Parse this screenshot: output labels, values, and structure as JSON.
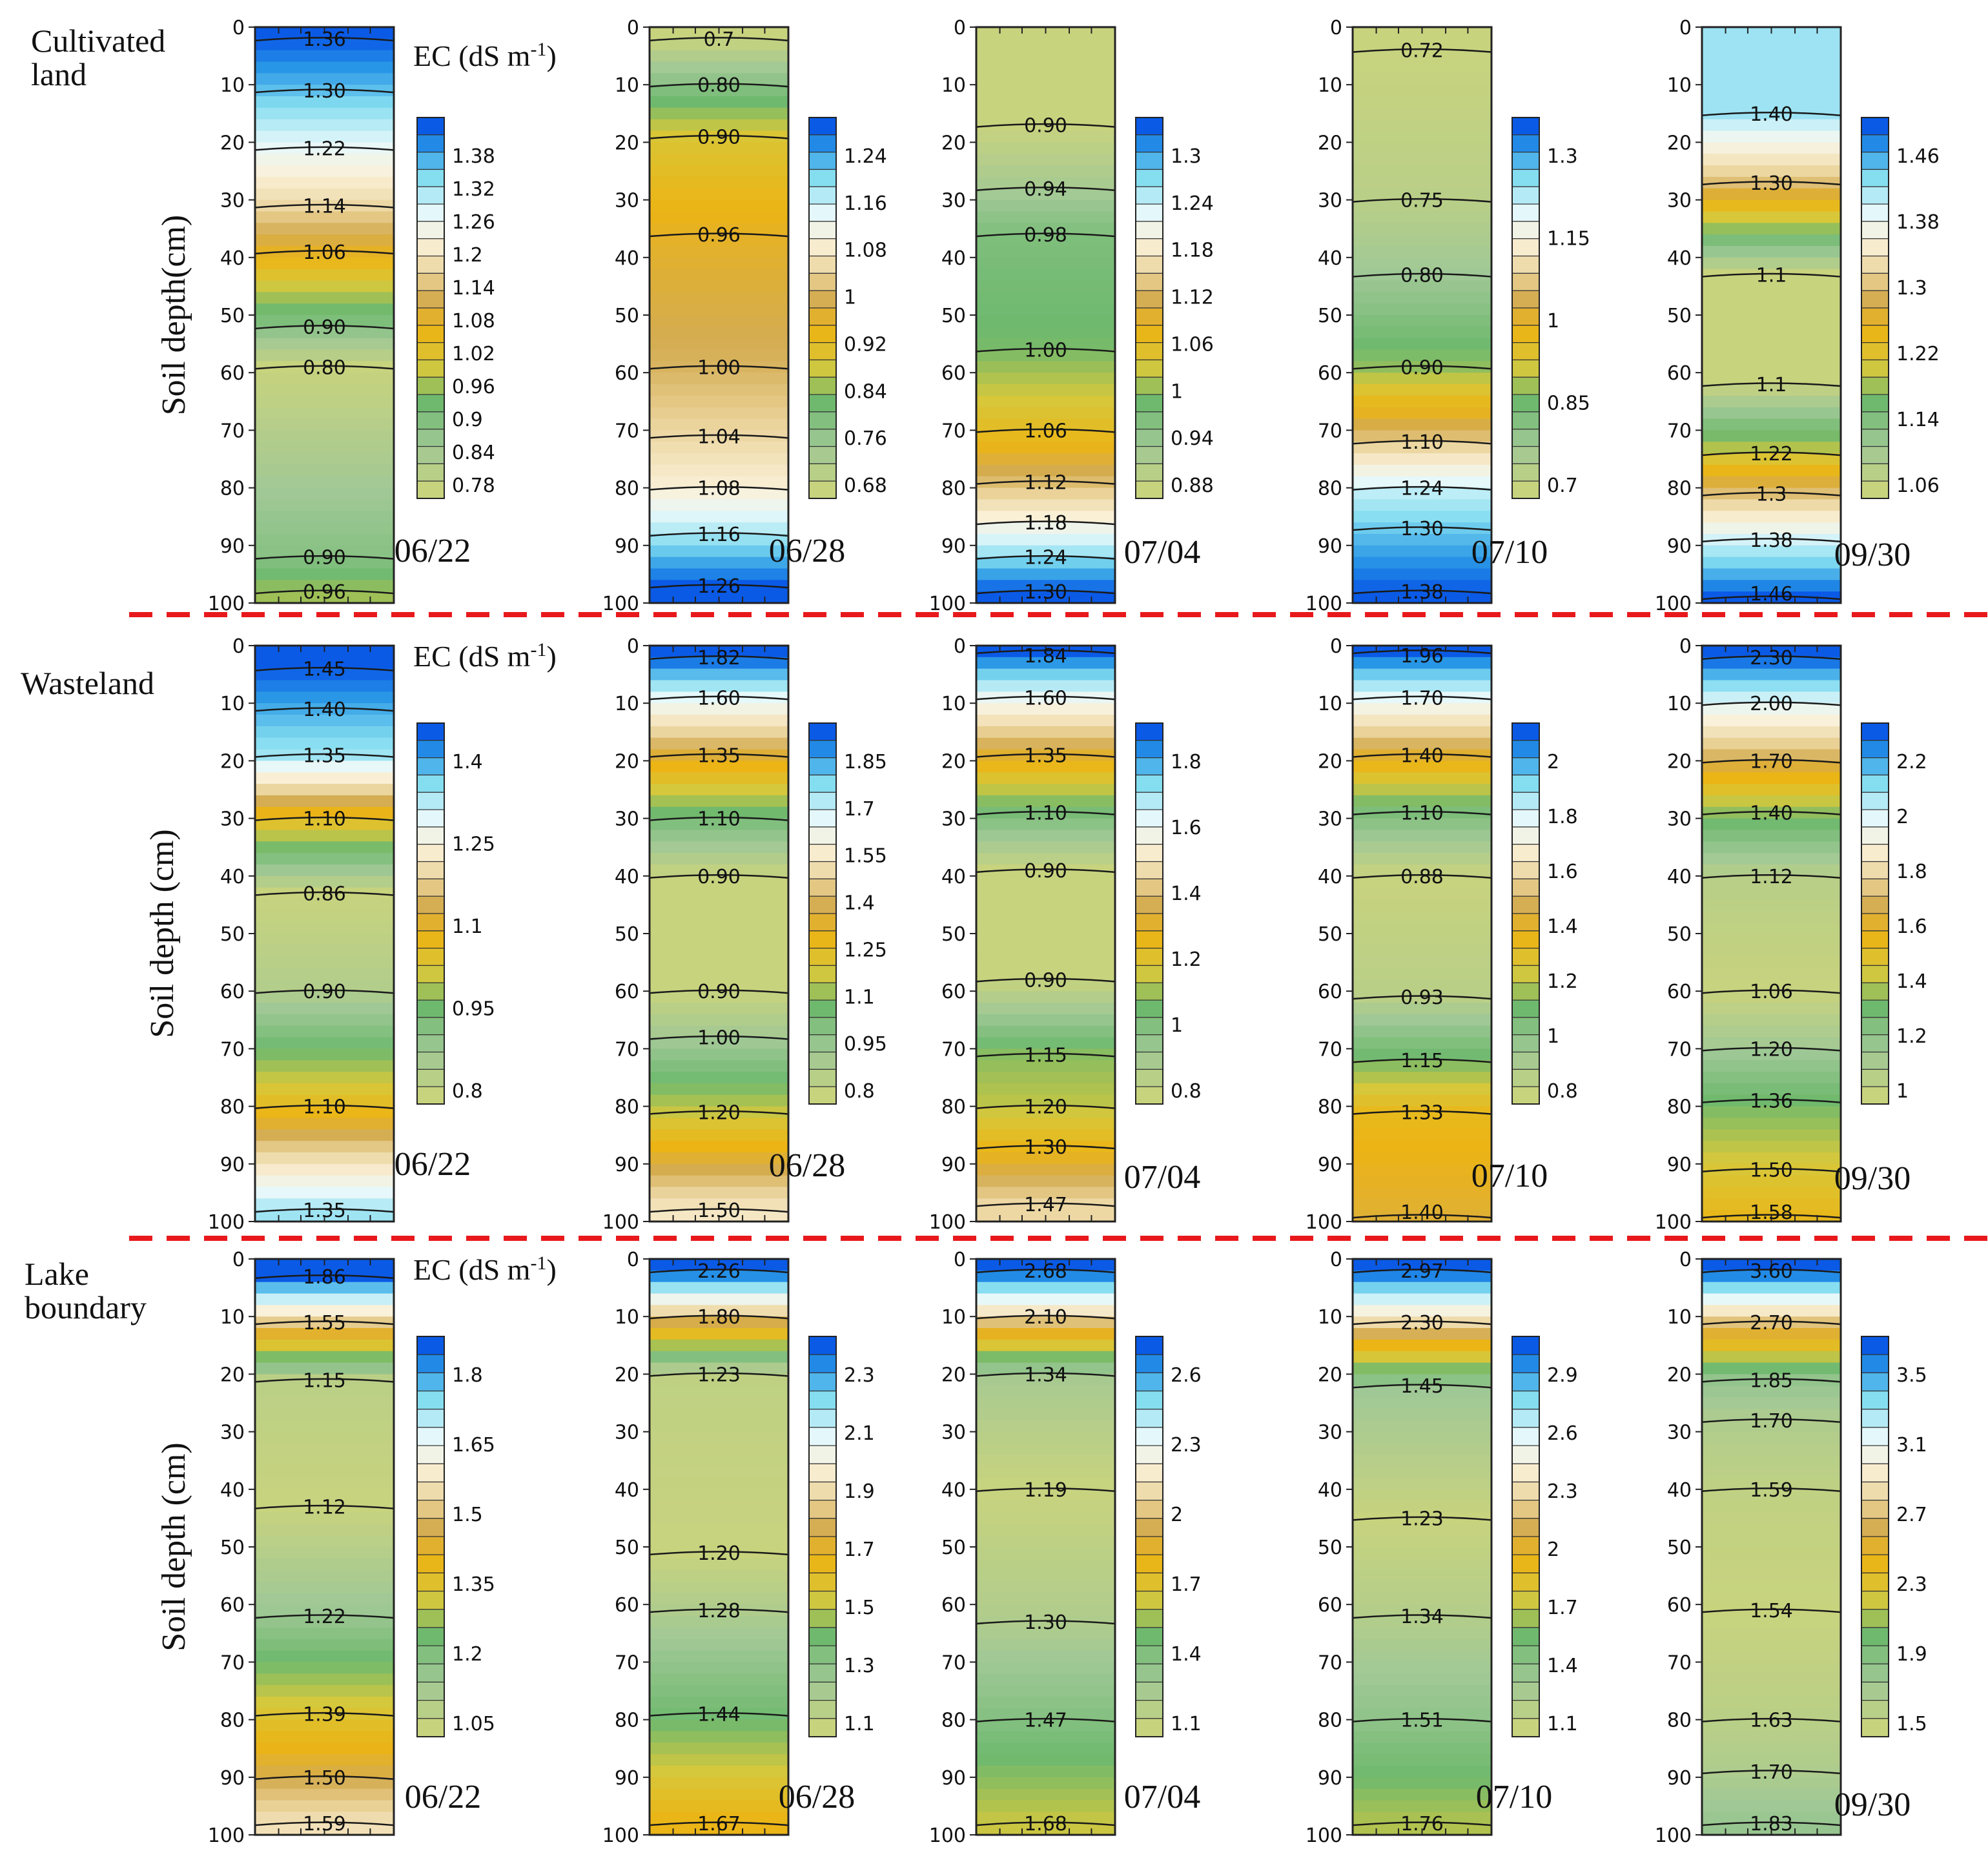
{
  "chart_data": {
    "type": "heatmap",
    "y_axis_label": "Soil depth(cm)",
    "y_axis_label_alt": "Soil depth (cm)",
    "y_ticks": [
      0,
      10,
      20,
      30,
      40,
      50,
      60,
      70,
      80,
      90,
      100
    ],
    "y_range": [
      0,
      100
    ],
    "colorbar_title": "EC (dS m",
    "colorbar_title_sup": "-1",
    "colorbar_title_end": ")",
    "dates": [
      "06/22",
      "06/28",
      "07/04",
      "07/10",
      "09/30"
    ],
    "rows": [
      {
        "title_lines": [
          "Cultivated",
          "land"
        ],
        "panels": [
          {
            "date": "06/22",
            "contour_labels": [
              {
                "depth": 2,
                "label": "1.36"
              },
              {
                "depth": 11,
                "label": "1.30"
              },
              {
                "depth": 21,
                "label": "1.22"
              },
              {
                "depth": 31,
                "label": "1.14"
              },
              {
                "depth": 39,
                "label": "1.06"
              },
              {
                "depth": 52,
                "label": "0.90"
              },
              {
                "depth": 59,
                "label": "0.80"
              },
              {
                "depth": 92,
                "label": "0.90"
              },
              {
                "depth": 98,
                "label": "0.96"
              }
            ],
            "colorbar_ticks": [
              "1.38",
              "1.32",
              "1.26",
              "1.2",
              "1.14",
              "1.08",
              "1.02",
              "0.96",
              "0.9",
              "0.84",
              "0.78"
            ]
          },
          {
            "date": "06/28",
            "contour_labels": [
              {
                "depth": 2,
                "label": "0.7"
              },
              {
                "depth": 10,
                "label": "0.80"
              },
              {
                "depth": 19,
                "label": "0.90"
              },
              {
                "depth": 36,
                "label": "0.96"
              },
              {
                "depth": 59,
                "label": "1.00"
              },
              {
                "depth": 71,
                "label": "1.04"
              },
              {
                "depth": 80,
                "label": "1.08"
              },
              {
                "depth": 88,
                "label": "1.16"
              },
              {
                "depth": 97,
                "label": "1.26"
              }
            ],
            "colorbar_ticks": [
              "1.24",
              "1.16",
              "1.08",
              "1",
              "0.92",
              "0.84",
              "0.76",
              "0.68"
            ]
          },
          {
            "date": "07/04",
            "contour_labels": [
              {
                "depth": 17,
                "label": "0.90"
              },
              {
                "depth": 28,
                "label": "0.94"
              },
              {
                "depth": 36,
                "label": "0.98"
              },
              {
                "depth": 56,
                "label": "1.00"
              },
              {
                "depth": 70,
                "label": "1.06"
              },
              {
                "depth": 79,
                "label": "1.12"
              },
              {
                "depth": 86,
                "label": "1.18"
              },
              {
                "depth": 92,
                "label": "1.24"
              },
              {
                "depth": 98,
                "label": "1.30"
              }
            ],
            "colorbar_ticks": [
              "1.3",
              "1.24",
              "1.18",
              "1.12",
              "1.06",
              "1",
              "0.94",
              "0.88"
            ]
          },
          {
            "date": "07/10",
            "contour_labels": [
              {
                "depth": 4,
                "label": "0.72"
              },
              {
                "depth": 30,
                "label": "0.75"
              },
              {
                "depth": 43,
                "label": "0.80"
              },
              {
                "depth": 59,
                "label": "0.90"
              },
              {
                "depth": 72,
                "label": "1.10"
              },
              {
                "depth": 80,
                "label": "1.24"
              },
              {
                "depth": 87,
                "label": "1.30"
              },
              {
                "depth": 98,
                "label": "1.38"
              }
            ],
            "colorbar_ticks": [
              "1.3",
              "1.15",
              "1",
              "0.85",
              "0.7"
            ]
          },
          {
            "date": "09/30",
            "contour_labels": [
              {
                "depth": 15,
                "label": "1.40"
              },
              {
                "depth": 27,
                "label": "1.30"
              },
              {
                "depth": 43,
                "label": "1.1"
              },
              {
                "depth": 62,
                "label": "1.1"
              },
              {
                "depth": 74,
                "label": "1.22"
              },
              {
                "depth": 81,
                "label": "1.3"
              },
              {
                "depth": 89,
                "label": "1.38"
              },
              {
                "depth": 99,
                "label": "1.46"
              }
            ],
            "colorbar_ticks": [
              "1.46",
              "1.38",
              "1.3",
              "1.22",
              "1.14",
              "1.06"
            ]
          }
        ]
      },
      {
        "title_lines": [
          "Wasteland"
        ],
        "panels": [
          {
            "date": "06/22",
            "contour_labels": [
              {
                "depth": 4,
                "label": "1.45"
              },
              {
                "depth": 11,
                "label": "1.40"
              },
              {
                "depth": 19,
                "label": "1.35"
              },
              {
                "depth": 30,
                "label": "1.10"
              },
              {
                "depth": 43,
                "label": "0.86"
              },
              {
                "depth": 60,
                "label": "0.90"
              },
              {
                "depth": 80,
                "label": "1.10"
              },
              {
                "depth": 98,
                "label": "1.35"
              }
            ],
            "colorbar_ticks": [
              "1.4",
              "1.25",
              "1.1",
              "0.95",
              "0.8"
            ]
          },
          {
            "date": "06/28",
            "contour_labels": [
              {
                "depth": 2,
                "label": "1.82"
              },
              {
                "depth": 9,
                "label": "1.60"
              },
              {
                "depth": 19,
                "label": "1.35"
              },
              {
                "depth": 30,
                "label": "1.10"
              },
              {
                "depth": 40,
                "label": "0.90"
              },
              {
                "depth": 60,
                "label": "0.90"
              },
              {
                "depth": 68,
                "label": "1.00"
              },
              {
                "depth": 81,
                "label": "1.20"
              },
              {
                "depth": 98,
                "label": "1.50"
              }
            ],
            "colorbar_ticks": [
              "1.85",
              "1.7",
              "1.55",
              "1.4",
              "1.25",
              "1.1",
              "0.95",
              "0.8"
            ]
          },
          {
            "date": "07/04",
            "contour_labels": [
              {
                "depth": 1,
                "label": "1.84"
              },
              {
                "depth": 9,
                "label": "1.60"
              },
              {
                "depth": 19,
                "label": "1.35"
              },
              {
                "depth": 29,
                "label": "1.10"
              },
              {
                "depth": 39,
                "label": "0.90"
              },
              {
                "depth": 58,
                "label": "0.90"
              },
              {
                "depth": 71,
                "label": "1.15"
              },
              {
                "depth": 80,
                "label": "1.20"
              },
              {
                "depth": 87,
                "label": "1.30"
              },
              {
                "depth": 97,
                "label": "1.47"
              }
            ],
            "colorbar_ticks": [
              "1.8",
              "1.6",
              "1.4",
              "1.2",
              "1",
              "0.8"
            ]
          },
          {
            "date": "07/10",
            "contour_labels": [
              {
                "depth": 1,
                "label": "1.96"
              },
              {
                "depth": 9,
                "label": "1.70"
              },
              {
                "depth": 19,
                "label": "1.40"
              },
              {
                "depth": 29,
                "label": "1.10"
              },
              {
                "depth": 40,
                "label": "0.88"
              },
              {
                "depth": 61,
                "label": "0.93"
              },
              {
                "depth": 72,
                "label": "1.15"
              },
              {
                "depth": 81,
                "label": "1.33"
              },
              {
                "depth": 99,
                "label": "1.40"
              }
            ],
            "colorbar_ticks": [
              "2",
              "1.8",
              "1.6",
              "1.4",
              "1.2",
              "1",
              "0.8"
            ]
          },
          {
            "date": "09/30",
            "contour_labels": [
              {
                "depth": 2,
                "label": "2.30"
              },
              {
                "depth": 10,
                "label": "2.00"
              },
              {
                "depth": 20,
                "label": "1.70"
              },
              {
                "depth": 29,
                "label": "1.40"
              },
              {
                "depth": 40,
                "label": "1.12"
              },
              {
                "depth": 60,
                "label": "1.06"
              },
              {
                "depth": 70,
                "label": "1.20"
              },
              {
                "depth": 79,
                "label": "1.36"
              },
              {
                "depth": 91,
                "label": "1.50"
              },
              {
                "depth": 99,
                "label": "1.58"
              }
            ],
            "colorbar_ticks": [
              "2.2",
              "2",
              "1.8",
              "1.6",
              "1.4",
              "1.2",
              "1"
            ]
          }
        ]
      },
      {
        "title_lines": [
          "Lake",
          "boundary"
        ],
        "panels": [
          {
            "date": "06/22",
            "contour_labels": [
              {
                "depth": 3,
                "label": "1.86"
              },
              {
                "depth": 11,
                "label": "1.55"
              },
              {
                "depth": 21,
                "label": "1.15"
              },
              {
                "depth": 43,
                "label": "1.12"
              },
              {
                "depth": 62,
                "label": "1.22"
              },
              {
                "depth": 79,
                "label": "1.39"
              },
              {
                "depth": 90,
                "label": "1.50"
              },
              {
                "depth": 98,
                "label": "1.59"
              }
            ],
            "colorbar_ticks": [
              "1.8",
              "1.65",
              "1.5",
              "1.35",
              "1.2",
              "1.05"
            ]
          },
          {
            "date": "06/28",
            "contour_labels": [
              {
                "depth": 2,
                "label": "2.26"
              },
              {
                "depth": 10,
                "label": "1.80"
              },
              {
                "depth": 20,
                "label": "1.23"
              },
              {
                "depth": 51,
                "label": "1.20"
              },
              {
                "depth": 61,
                "label": "1.28"
              },
              {
                "depth": 79,
                "label": "1.44"
              },
              {
                "depth": 98,
                "label": "1.67"
              }
            ],
            "colorbar_ticks": [
              "2.3",
              "2.1",
              "1.9",
              "1.7",
              "1.5",
              "1.3",
              "1.1"
            ]
          },
          {
            "date": "07/04",
            "contour_labels": [
              {
                "depth": 2,
                "label": "2.68"
              },
              {
                "depth": 10,
                "label": "2.10"
              },
              {
                "depth": 20,
                "label": "1.34"
              },
              {
                "depth": 40,
                "label": "1.19"
              },
              {
                "depth": 63,
                "label": "1.30"
              },
              {
                "depth": 80,
                "label": "1.47"
              },
              {
                "depth": 98,
                "label": "1.68"
              }
            ],
            "colorbar_ticks": [
              "2.6",
              "2.3",
              "2",
              "1.7",
              "1.4",
              "1.1"
            ]
          },
          {
            "date": "07/10",
            "contour_labels": [
              {
                "depth": 2,
                "label": "2.97"
              },
              {
                "depth": 11,
                "label": "2.30"
              },
              {
                "depth": 22,
                "label": "1.45"
              },
              {
                "depth": 45,
                "label": "1.23"
              },
              {
                "depth": 62,
                "label": "1.34"
              },
              {
                "depth": 80,
                "label": "1.51"
              },
              {
                "depth": 98,
                "label": "1.76"
              }
            ],
            "colorbar_ticks": [
              "2.9",
              "2.6",
              "2.3",
              "2",
              "1.7",
              "1.4",
              "1.1"
            ]
          },
          {
            "date": "09/30",
            "contour_labels": [
              {
                "depth": 2,
                "label": "3.60"
              },
              {
                "depth": 11,
                "label": "2.70"
              },
              {
                "depth": 21,
                "label": "1.85"
              },
              {
                "depth": 28,
                "label": "1.70"
              },
              {
                "depth": 40,
                "label": "1.59"
              },
              {
                "depth": 61,
                "label": "1.54"
              },
              {
                "depth": 80,
                "label": "1.63"
              },
              {
                "depth": 89,
                "label": "1.70"
              },
              {
                "depth": 98,
                "label": "1.83"
              }
            ],
            "colorbar_ticks": [
              "3.5",
              "3.1",
              "2.7",
              "2.3",
              "1.9",
              "1.5"
            ]
          }
        ]
      }
    ],
    "colors": {
      "divider": "#e8191c",
      "line": "#1a1a1a"
    }
  }
}
